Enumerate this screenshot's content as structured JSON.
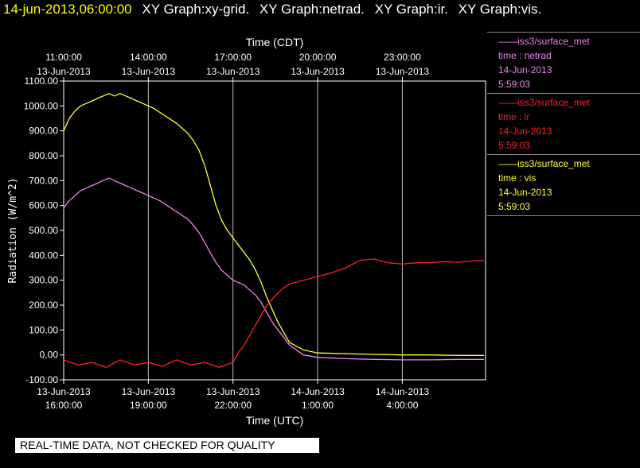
{
  "header": {
    "timestamp": "14-jun-2013,06:00:00",
    "graphs": [
      "XY Graph:xy-grid.",
      "XY Graph:netrad.",
      "XY Graph:ir.",
      "XY Graph:vis."
    ]
  },
  "legend": [
    {
      "lines": [
        "——iss3/surface_met",
        "time : netrad",
        "14-Jun-2013",
        "5:59:03"
      ],
      "color": "#ee82ee"
    },
    {
      "lines": [
        "——iss3/surface_met",
        "time : ir",
        "14-Jun-2013",
        "5:59:03"
      ],
      "color": "#ff2020"
    },
    {
      "lines": [
        "——iss3/surface_met",
        "time : vis",
        "14-Jun-2013",
        "5:59:03"
      ],
      "color": "#ffff33"
    }
  ],
  "disclaimer": "REAL-TIME DATA, NOT CHECKED FOR QUALITY",
  "chart_data": {
    "type": "line",
    "ylabel": "Radiation (W/m^2)",
    "xlabel_bottom": "Time (UTC)",
    "xlabel_top": "Time (CDT)",
    "ylim": [
      -100,
      1100
    ],
    "xlim_utc_hours": [
      16.0,
      30.95
    ],
    "yticks": [
      -100,
      0,
      100,
      200,
      300,
      400,
      500,
      600,
      700,
      800,
      900,
      1000,
      1100
    ],
    "ytick_labels": [
      "-100.00",
      "0.00",
      "100.00",
      "200.00",
      "300.00",
      "400.00",
      "500.00",
      "600.00",
      "700.00",
      "800.00",
      "900.00",
      "1000.00",
      "1100.00"
    ],
    "bottom_ticks": [
      {
        "x": 16,
        "date": "13-Jun-2013",
        "time": "16:00:00"
      },
      {
        "x": 19,
        "date": "13-Jun-2013",
        "time": "19:00:00"
      },
      {
        "x": 22,
        "date": "13-Jun-2013",
        "time": "22:00:00"
      },
      {
        "x": 25,
        "date": "14-Jun-2013",
        "time": "1:00:00"
      },
      {
        "x": 28,
        "date": "14-Jun-2013",
        "time": "4:00:00"
      }
    ],
    "top_ticks": [
      {
        "x": 16,
        "time": "11:00:00",
        "date": "13-Jun-2013"
      },
      {
        "x": 19,
        "time": "14:00:00",
        "date": "13-Jun-2013"
      },
      {
        "x": 22,
        "time": "17:00:00",
        "date": "13-Jun-2013"
      },
      {
        "x": 25,
        "time": "20:00:00",
        "date": "13-Jun-2013"
      },
      {
        "x": 28,
        "time": "23:00:00",
        "date": "13-Jun-2013"
      }
    ],
    "grid": true,
    "series": [
      {
        "color": "#ffff33",
        "x": [
          16.0,
          16.2,
          16.4,
          16.6,
          16.8,
          17.0,
          17.2,
          17.4,
          17.6,
          17.8,
          18.0,
          18.2,
          18.4,
          18.6,
          18.8,
          19.0,
          19.2,
          19.4,
          19.6,
          19.8,
          20.0,
          20.2,
          20.4,
          20.6,
          20.8,
          21.0,
          21.2,
          21.4,
          21.6,
          21.8,
          22.0,
          22.2,
          22.4,
          22.6,
          22.8,
          23.0,
          23.2,
          23.4,
          23.6,
          23.8,
          24.0,
          24.5,
          25.0,
          26.0,
          27.0,
          28.0,
          29.0,
          30.0,
          30.9
        ],
        "y": [
          900,
          950,
          980,
          1000,
          1010,
          1020,
          1030,
          1040,
          1050,
          1040,
          1050,
          1040,
          1030,
          1020,
          1010,
          1000,
          990,
          975,
          960,
          945,
          930,
          910,
          890,
          860,
          820,
          760,
          680,
          600,
          540,
          500,
          470,
          440,
          410,
          380,
          340,
          290,
          230,
          180,
          130,
          90,
          50,
          20,
          8,
          5,
          2,
          0,
          0,
          -2,
          -2
        ]
      },
      {
        "color": "#ee82ee",
        "x": [
          16.0,
          16.2,
          16.4,
          16.6,
          16.8,
          17.0,
          17.2,
          17.4,
          17.6,
          17.8,
          18.0,
          18.2,
          18.4,
          18.6,
          18.8,
          19.0,
          19.2,
          19.4,
          19.6,
          19.8,
          20.0,
          20.2,
          20.4,
          20.6,
          20.8,
          21.0,
          21.2,
          21.4,
          21.6,
          21.8,
          22.0,
          22.2,
          22.4,
          22.6,
          22.8,
          23.0,
          23.2,
          23.4,
          23.6,
          23.8,
          24.0,
          24.5,
          25.0,
          26.0,
          27.0,
          28.0,
          29.0,
          30.0,
          30.9
        ],
        "y": [
          590,
          620,
          640,
          660,
          670,
          680,
          690,
          700,
          710,
          700,
          690,
          680,
          670,
          660,
          650,
          640,
          630,
          620,
          605,
          590,
          575,
          560,
          545,
          520,
          490,
          450,
          410,
          370,
          340,
          320,
          300,
          290,
          280,
          260,
          240,
          210,
          170,
          130,
          100,
          70,
          40,
          0,
          -10,
          -15,
          -18,
          -20,
          -20,
          -18,
          -18
        ]
      },
      {
        "color": "#ff2020",
        "x": [
          16.0,
          16.5,
          17.0,
          17.5,
          18.0,
          18.5,
          19.0,
          19.5,
          20.0,
          20.5,
          21.0,
          21.5,
          22.0,
          22.2,
          22.4,
          22.6,
          22.8,
          23.0,
          23.2,
          23.4,
          23.6,
          23.8,
          24.0,
          24.5,
          25.0,
          25.5,
          26.0,
          26.5,
          27.0,
          27.5,
          28.0,
          28.5,
          29.0,
          29.5,
          30.0,
          30.5,
          30.9
        ],
        "y": [
          -20,
          -40,
          -30,
          -50,
          -20,
          -40,
          -30,
          -45,
          -20,
          -40,
          -30,
          -50,
          -30,
          10,
          40,
          80,
          120,
          160,
          200,
          225,
          250,
          270,
          285,
          300,
          315,
          330,
          350,
          380,
          385,
          370,
          365,
          370,
          370,
          375,
          372,
          378,
          378
        ]
      }
    ]
  }
}
